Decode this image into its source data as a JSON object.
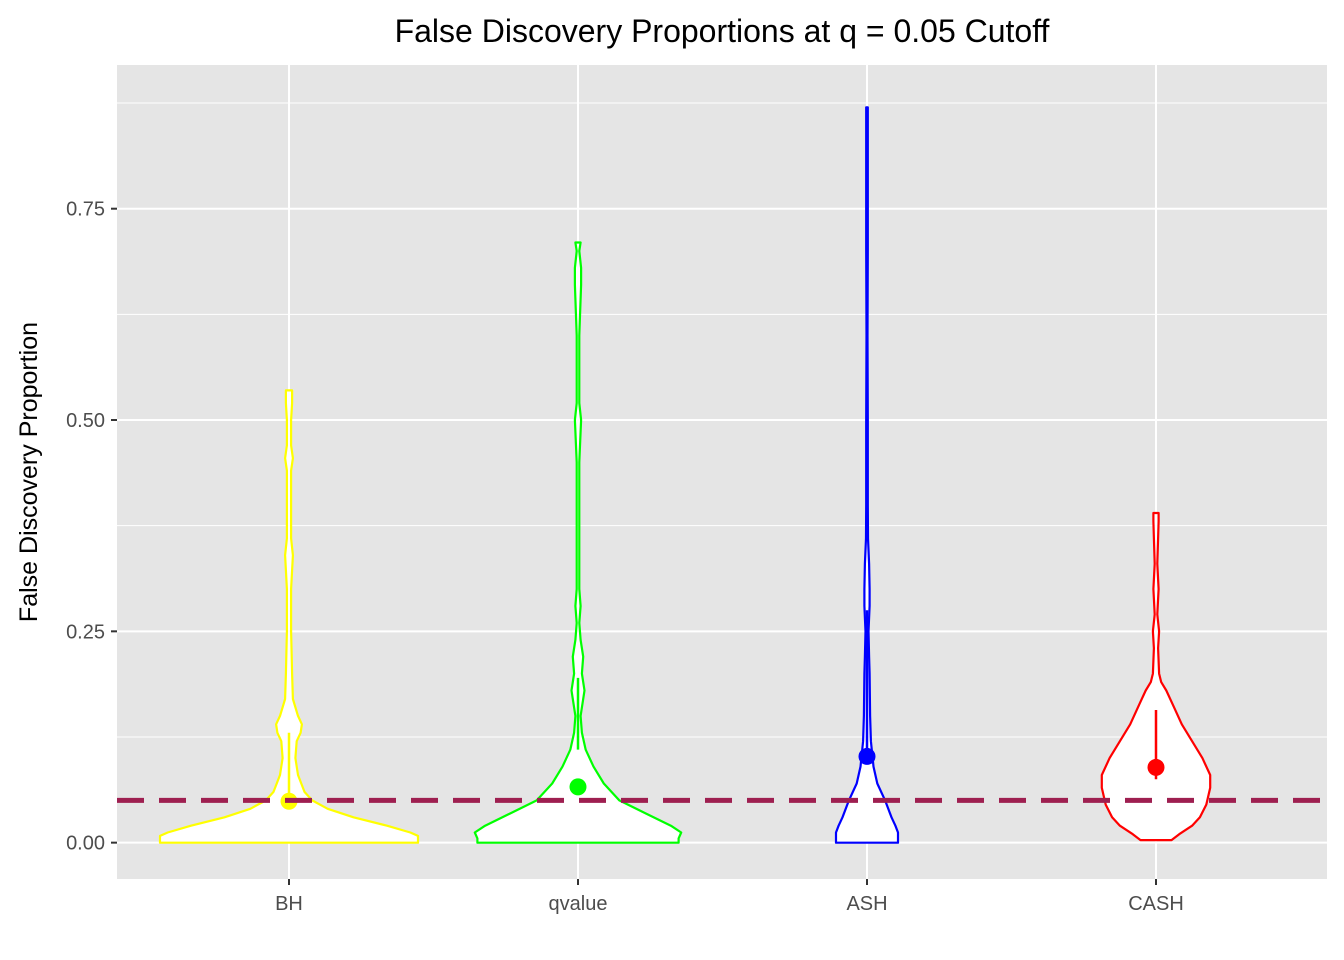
{
  "chart_data": {
    "type": "violin",
    "title": "False Discovery Proportions at q = 0.05 Cutoff",
    "xlabel": "",
    "ylabel": "False Discovery Proportion",
    "categories": [
      "BH",
      "qvalue",
      "ASH",
      "CASH"
    ],
    "ylim": [
      -0.043,
      0.92
    ],
    "yticks": [
      0.0,
      0.25,
      0.5,
      0.75
    ],
    "ytick_labels": [
      "0.00",
      "0.25",
      "0.50",
      "0.75"
    ],
    "grid": true,
    "reference_line": {
      "value": 0.05,
      "style": "dashed",
      "color": "#9e1f50"
    },
    "series": [
      {
        "category": "BH",
        "color": "#ffff00",
        "mean": 0.049,
        "median_range": [
          0.05,
          0.13
        ],
        "profile": [
          [
            0.0,
            0.5
          ],
          [
            0.008,
            0.5
          ],
          [
            0.012,
            0.47
          ],
          [
            0.02,
            0.38
          ],
          [
            0.03,
            0.25
          ],
          [
            0.04,
            0.15
          ],
          [
            0.05,
            0.09
          ],
          [
            0.06,
            0.06
          ],
          [
            0.08,
            0.035
          ],
          [
            0.1,
            0.025
          ],
          [
            0.12,
            0.03
          ],
          [
            0.13,
            0.045
          ],
          [
            0.14,
            0.05
          ],
          [
            0.15,
            0.035
          ],
          [
            0.17,
            0.015
          ],
          [
            0.2,
            0.012
          ],
          [
            0.25,
            0.008
          ],
          [
            0.3,
            0.008
          ],
          [
            0.34,
            0.015
          ],
          [
            0.36,
            0.008
          ],
          [
            0.4,
            0.008
          ],
          [
            0.44,
            0.008
          ],
          [
            0.455,
            0.015
          ],
          [
            0.47,
            0.008
          ],
          [
            0.5,
            0.008
          ],
          [
            0.52,
            0.012
          ],
          [
            0.535,
            0.012
          ]
        ]
      },
      {
        "category": "qvalue",
        "color": "#00ff00",
        "mean": 0.066,
        "median_range": [
          0.11,
          0.195
        ],
        "profile": [
          [
            0.0,
            0.39
          ],
          [
            0.005,
            0.39
          ],
          [
            0.012,
            0.4
          ],
          [
            0.02,
            0.36
          ],
          [
            0.035,
            0.26
          ],
          [
            0.05,
            0.16
          ],
          [
            0.07,
            0.1
          ],
          [
            0.09,
            0.06
          ],
          [
            0.11,
            0.03
          ],
          [
            0.13,
            0.015
          ],
          [
            0.15,
            0.01
          ],
          [
            0.18,
            0.025
          ],
          [
            0.2,
            0.015
          ],
          [
            0.22,
            0.02
          ],
          [
            0.24,
            0.01
          ],
          [
            0.26,
            0.005
          ],
          [
            0.28,
            0.01
          ],
          [
            0.3,
            0.005
          ],
          [
            0.35,
            0.005
          ],
          [
            0.45,
            0.005
          ],
          [
            0.5,
            0.012
          ],
          [
            0.52,
            0.005
          ],
          [
            0.6,
            0.005
          ],
          [
            0.66,
            0.012
          ],
          [
            0.68,
            0.012
          ],
          [
            0.7,
            0.005
          ],
          [
            0.71,
            0.01
          ]
        ]
      },
      {
        "category": "ASH",
        "color": "#0000ff",
        "mean": 0.102,
        "median_range": [
          0.1,
          0.275
        ],
        "profile": [
          [
            0.0,
            0.12
          ],
          [
            0.005,
            0.12
          ],
          [
            0.012,
            0.12
          ],
          [
            0.02,
            0.11
          ],
          [
            0.03,
            0.095
          ],
          [
            0.05,
            0.07
          ],
          [
            0.07,
            0.04
          ],
          [
            0.09,
            0.025
          ],
          [
            0.12,
            0.015
          ],
          [
            0.15,
            0.012
          ],
          [
            0.2,
            0.01
          ],
          [
            0.22,
            0.008
          ],
          [
            0.25,
            0.006
          ],
          [
            0.28,
            0.01
          ],
          [
            0.3,
            0.01
          ],
          [
            0.33,
            0.008
          ],
          [
            0.36,
            0.004
          ],
          [
            0.4,
            0.003
          ],
          [
            0.5,
            0.003
          ],
          [
            0.6,
            0.002
          ],
          [
            0.7,
            0.003
          ],
          [
            0.8,
            0.003
          ],
          [
            0.87,
            0.003
          ]
        ]
      },
      {
        "category": "CASH",
        "color": "#ff0000",
        "mean": 0.089,
        "median_range": [
          0.075,
          0.157
        ],
        "profile": [
          [
            0.003,
            0.06
          ],
          [
            0.01,
            0.09
          ],
          [
            0.02,
            0.14
          ],
          [
            0.03,
            0.17
          ],
          [
            0.045,
            0.195
          ],
          [
            0.065,
            0.21
          ],
          [
            0.08,
            0.21
          ],
          [
            0.1,
            0.18
          ],
          [
            0.12,
            0.14
          ],
          [
            0.14,
            0.1
          ],
          [
            0.16,
            0.07
          ],
          [
            0.18,
            0.04
          ],
          [
            0.19,
            0.02
          ],
          [
            0.2,
            0.012
          ],
          [
            0.23,
            0.008
          ],
          [
            0.25,
            0.012
          ],
          [
            0.27,
            0.005
          ],
          [
            0.3,
            0.01
          ],
          [
            0.33,
            0.005
          ],
          [
            0.36,
            0.008
          ],
          [
            0.38,
            0.01
          ],
          [
            0.39,
            0.01
          ]
        ]
      }
    ]
  }
}
